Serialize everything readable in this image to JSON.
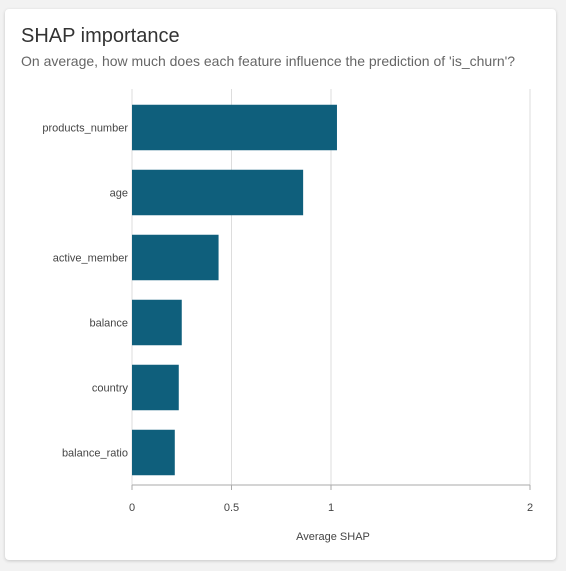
{
  "title": "SHAP importance",
  "subtitle": "On average, how much does each feature influence the prediction of 'is_churn'?",
  "colors": {
    "bar": "#0f5f7c",
    "grid": "#dddddd",
    "axis": "#aaaaaa",
    "text": "#444444"
  },
  "chart_data": {
    "type": "bar",
    "orientation": "horizontal",
    "categories": [
      "products_number",
      "age",
      "active_member",
      "balance",
      "country",
      "balance_ratio"
    ],
    "values": [
      1.03,
      0.86,
      0.435,
      0.25,
      0.235,
      0.215
    ],
    "xlabel": "Average SHAP",
    "ylabel": "",
    "xlim": [
      0,
      2
    ],
    "xticks": [
      "0",
      "0.5",
      "1",
      "2"
    ],
    "xtick_values": [
      0,
      0.5,
      1,
      2
    ],
    "grid": "vertical"
  }
}
